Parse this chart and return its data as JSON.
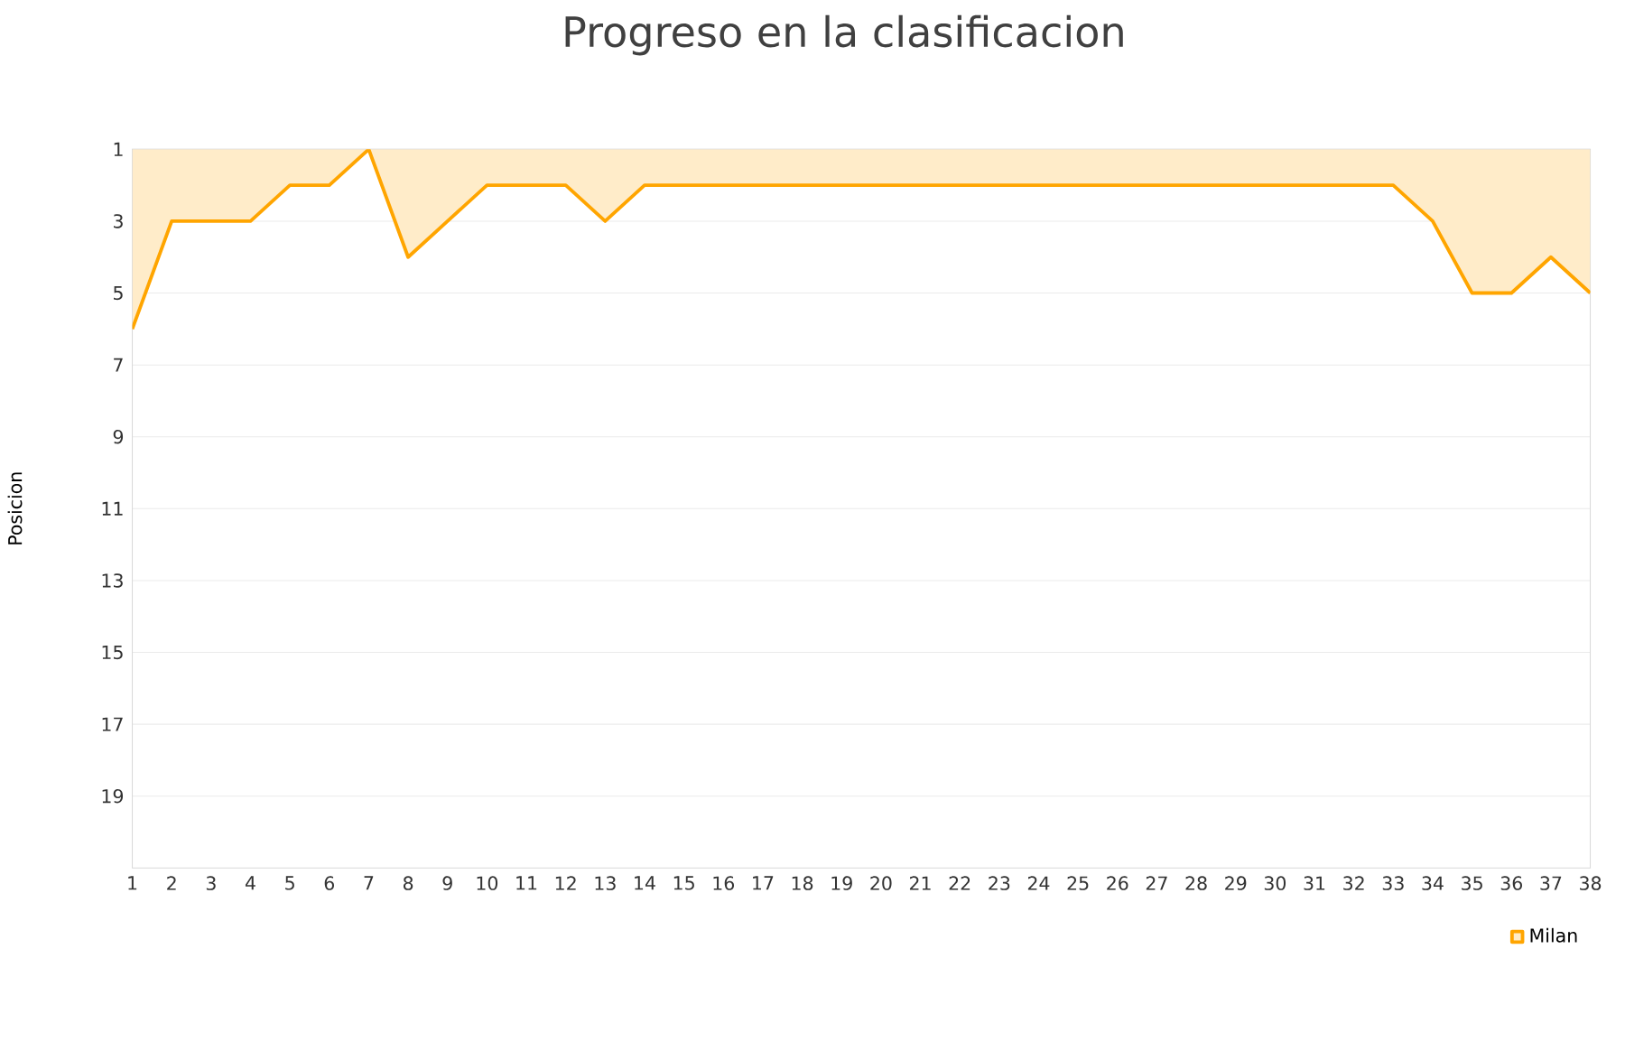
{
  "chart_data": {
    "type": "area",
    "title": "Progreso en la clasificacion",
    "ylabel": "Posicion",
    "x": [
      1,
      2,
      3,
      4,
      5,
      6,
      7,
      8,
      9,
      10,
      11,
      12,
      13,
      14,
      15,
      16,
      17,
      18,
      19,
      20,
      21,
      22,
      23,
      24,
      25,
      26,
      27,
      28,
      29,
      30,
      31,
      32,
      33,
      34,
      35,
      36,
      37,
      38
    ],
    "series": [
      {
        "name": "Milan",
        "color": "#ffa500",
        "values": [
          6,
          3,
          3,
          3,
          2,
          2,
          1,
          4,
          3,
          2,
          2,
          2,
          3,
          2,
          2,
          2,
          2,
          2,
          2,
          2,
          2,
          2,
          2,
          2,
          2,
          2,
          2,
          2,
          2,
          2,
          2,
          2,
          2,
          3,
          5,
          5,
          4,
          5
        ]
      }
    ],
    "xlim": [
      1,
      38
    ],
    "xticks": [
      1,
      2,
      3,
      4,
      5,
      6,
      7,
      8,
      9,
      10,
      11,
      12,
      13,
      14,
      15,
      16,
      17,
      18,
      19,
      20,
      21,
      22,
      23,
      24,
      25,
      26,
      27,
      28,
      29,
      30,
      31,
      32,
      33,
      34,
      35,
      36,
      37,
      38
    ],
    "ylim": [
      21,
      1
    ],
    "yticks": [
      1,
      3,
      5,
      7,
      9,
      11,
      13,
      15,
      17,
      19
    ],
    "grid": "y",
    "legend": "bottom right"
  }
}
